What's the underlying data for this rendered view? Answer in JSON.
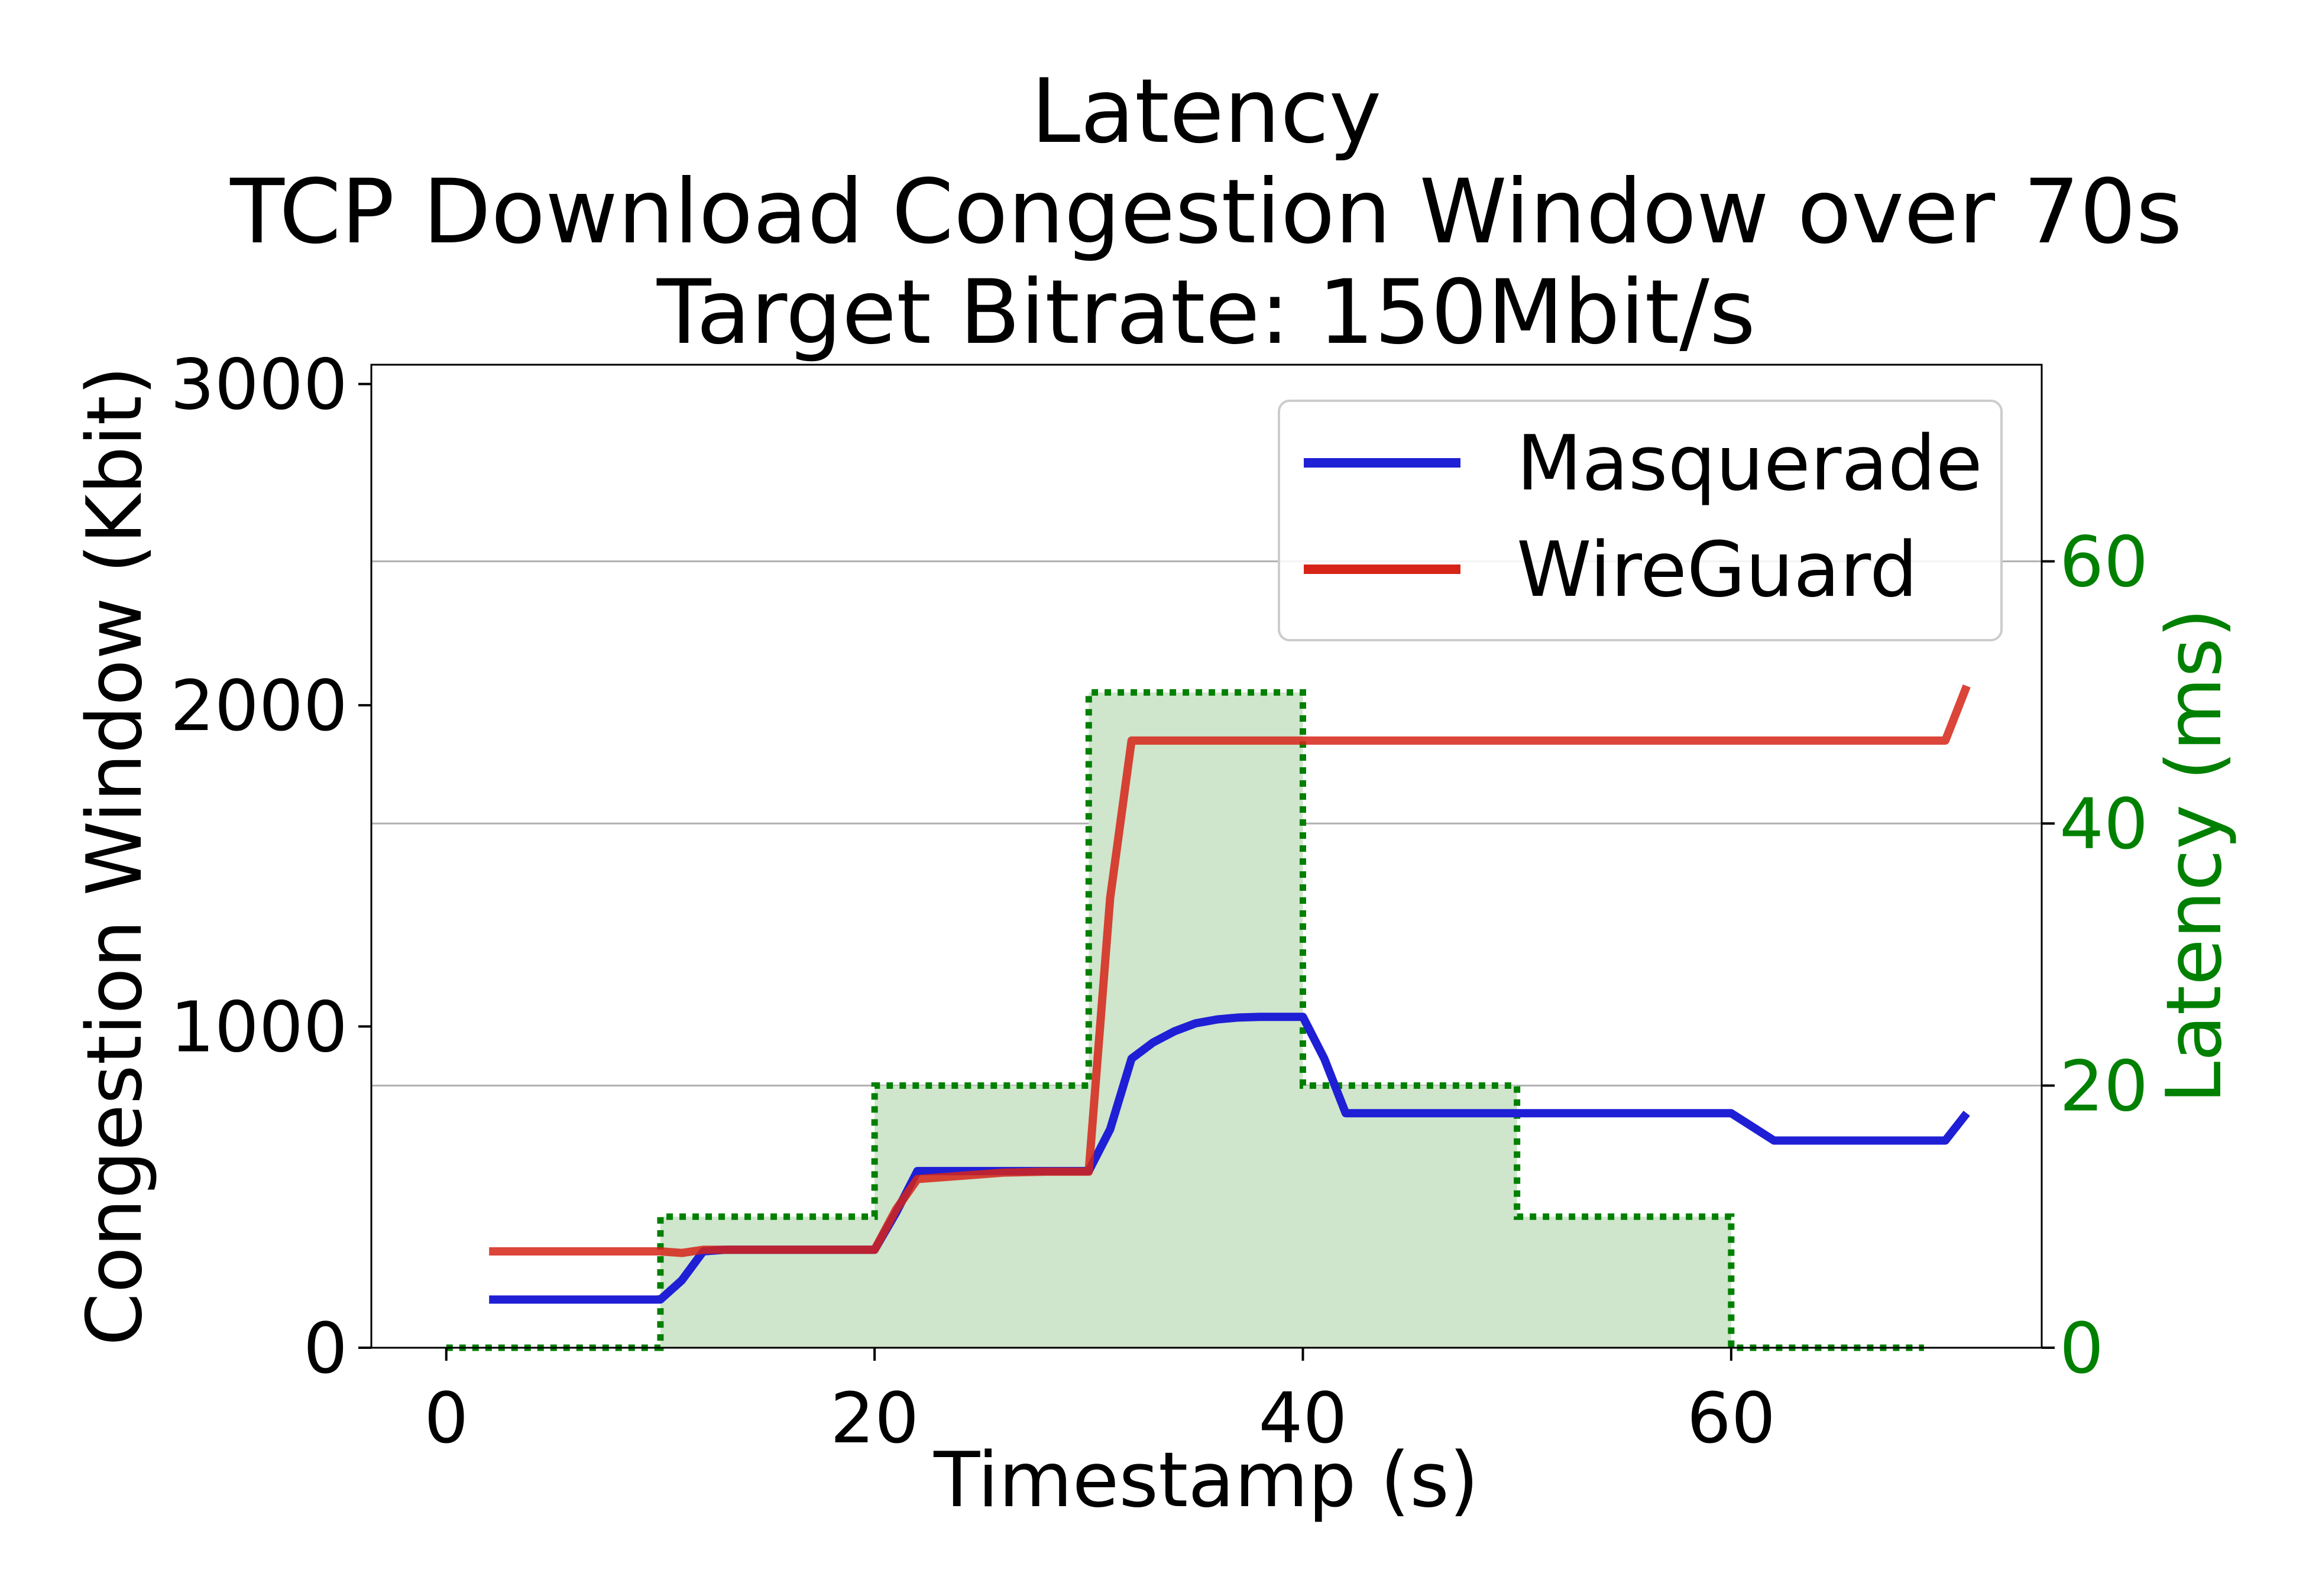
{
  "title": {
    "line1": "Latency",
    "line2": "TCP Download Congestion Window over 70s",
    "line3": "Target Bitrate: 150Mbit/s"
  },
  "colors": {
    "masquerade": "#1f1fd6",
    "wireguard": "#d62518",
    "latency": "#008000",
    "latency_fill": "#cfe5cc",
    "grid": "#b0b0b0"
  },
  "chart_data": {
    "type": "line",
    "xlabel": "Timestamp (s)",
    "ylabel": "Congestion Window (Kbit)",
    "ylabel_right": "Latency (ms)",
    "xlim": [
      -3.5,
      74.5
    ],
    "ylim": [
      0,
      3060
    ],
    "ylim_right": [
      0,
      75
    ],
    "xticks": [
      0,
      20,
      40,
      60
    ],
    "yticks": [
      0,
      1000,
      2000,
      3000
    ],
    "yticks_right": [
      0,
      20,
      40,
      60
    ],
    "grid": "horizontal lines at right-axis ticks",
    "legend_position": "top-right",
    "series": [
      {
        "name": "Masquerade",
        "axis": "left",
        "x": [
          2,
          10,
          11,
          12,
          13,
          20,
          21,
          22,
          24,
          26,
          28,
          30,
          31,
          32,
          33,
          34,
          35,
          36,
          37,
          38,
          39,
          40,
          41,
          42,
          44,
          50,
          55,
          60,
          62,
          65,
          70,
          71
        ],
        "y": [
          150,
          150,
          210,
          300,
          305,
          305,
          420,
          550,
          550,
          550,
          550,
          550,
          680,
          900,
          950,
          985,
          1010,
          1022,
          1028,
          1030,
          1030,
          1030,
          900,
          730,
          730,
          730,
          730,
          730,
          645,
          645,
          645,
          730
        ]
      },
      {
        "name": "WireGuard",
        "axis": "left",
        "x": [
          2,
          10,
          11,
          12,
          20,
          21,
          22,
          24,
          26,
          28,
          30,
          31,
          32,
          34,
          40,
          50,
          60,
          70,
          71
        ],
        "y": [
          300,
          300,
          295,
          305,
          305,
          430,
          525,
          535,
          545,
          548,
          548,
          1400,
          1890,
          1890,
          1890,
          1890,
          1890,
          1890,
          2060
        ]
      },
      {
        "name": "Latency",
        "axis": "right",
        "style": "dotted step with filled area",
        "x": [
          0,
          10,
          20,
          30,
          40,
          50,
          60,
          69
        ],
        "y": [
          0,
          10,
          20,
          50,
          20,
          10,
          0,
          0
        ]
      }
    ]
  }
}
